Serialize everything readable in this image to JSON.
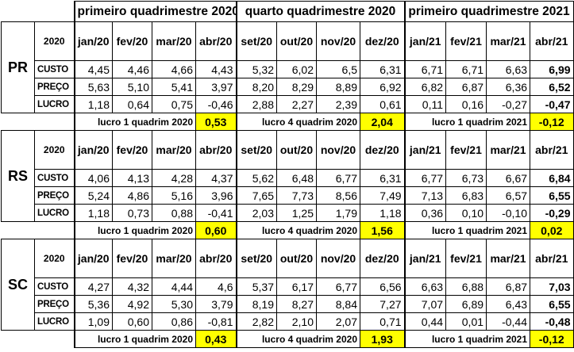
{
  "quadrimesters": [
    "primeiro quadrimestre 2020",
    "quarto quadrimestre 2020",
    "primeiro quadrimestre 2021"
  ],
  "months": [
    "jan/20",
    "fev/20",
    "mar/20",
    "abr/20",
    "set/20",
    "out/20",
    "nov/20",
    "dez/20",
    "jan/21",
    "fev/21",
    "mar/21",
    "abr/21"
  ],
  "sum_labels": [
    "lucro 1 quadrim 2020",
    "lucro 4 quadrim 2020",
    "lucro 1 quadrim 2021"
  ],
  "highlight_color": "#ffff00",
  "blocks": [
    {
      "state": "PR",
      "year": "2020",
      "rows": [
        {
          "label": "CUSTO",
          "values": [
            "4,45",
            "4,46",
            "4,66",
            "4,43",
            "5,32",
            "6,02",
            "6,5",
            "6,31",
            "6,71",
            "6,71",
            "6,63",
            "6,99"
          ]
        },
        {
          "label": "PREÇO",
          "values": [
            "5,63",
            "5,10",
            "5,41",
            "3,97",
            "8,20",
            "8,29",
            "8,89",
            "6,92",
            "6,82",
            "6,87",
            "6,36",
            "6,52"
          ]
        },
        {
          "label": "LUCRO",
          "values": [
            "1,18",
            "0,64",
            "0,75",
            "-0,46",
            "2,88",
            "2,27",
            "2,39",
            "0,61",
            "0,11",
            "0,16",
            "-0,27",
            "-0,47"
          ]
        }
      ],
      "summary": [
        "0,53",
        "2,04",
        "-0,12"
      ]
    },
    {
      "state": "RS",
      "year": "2020",
      "rows": [
        {
          "label": "CUSTO",
          "values": [
            "4,06",
            "4,13",
            "4,28",
            "4,37",
            "5,62",
            "6,48",
            "6,77",
            "6,31",
            "6,77",
            "6,73",
            "6,67",
            "6,84"
          ]
        },
        {
          "label": "PREÇO",
          "values": [
            "5,24",
            "4,86",
            "5,16",
            "3,96",
            "7,65",
            "7,73",
            "8,56",
            "7,49",
            "7,13",
            "6,83",
            "6,57",
            "6,55"
          ]
        },
        {
          "label": "LUCRO",
          "values": [
            "1,18",
            "0,73",
            "0,88",
            "-0,41",
            "2,03",
            "1,25",
            "1,79",
            "1,18",
            "0,36",
            "0,10",
            "-0,10",
            "-0,29"
          ]
        }
      ],
      "summary": [
        "0,60",
        "1,56",
        "0,02"
      ]
    },
    {
      "state": "SC",
      "year": "2020",
      "rows": [
        {
          "label": "CUSTO",
          "values": [
            "4,27",
            "4,32",
            "4,44",
            "4,6",
            "5,37",
            "6,17",
            "6,77",
            "6,56",
            "6,63",
            "6,88",
            "6,87",
            "7,03"
          ]
        },
        {
          "label": "PREÇO",
          "values": [
            "5,36",
            "4,92",
            "5,30",
            "3,79",
            "8,19",
            "8,27",
            "8,84",
            "7,27",
            "7,07",
            "6,89",
            "6,43",
            "6,55"
          ]
        },
        {
          "label": "LUCRO",
          "values": [
            "1,09",
            "0,60",
            "0,86",
            "-0,81",
            "2,82",
            "2,10",
            "2,07",
            "0,71",
            "0,44",
            "0,01",
            "-0,44",
            "-0,48"
          ]
        }
      ],
      "summary": [
        "0,43",
        "1,93",
        "-0,12"
      ]
    }
  ]
}
